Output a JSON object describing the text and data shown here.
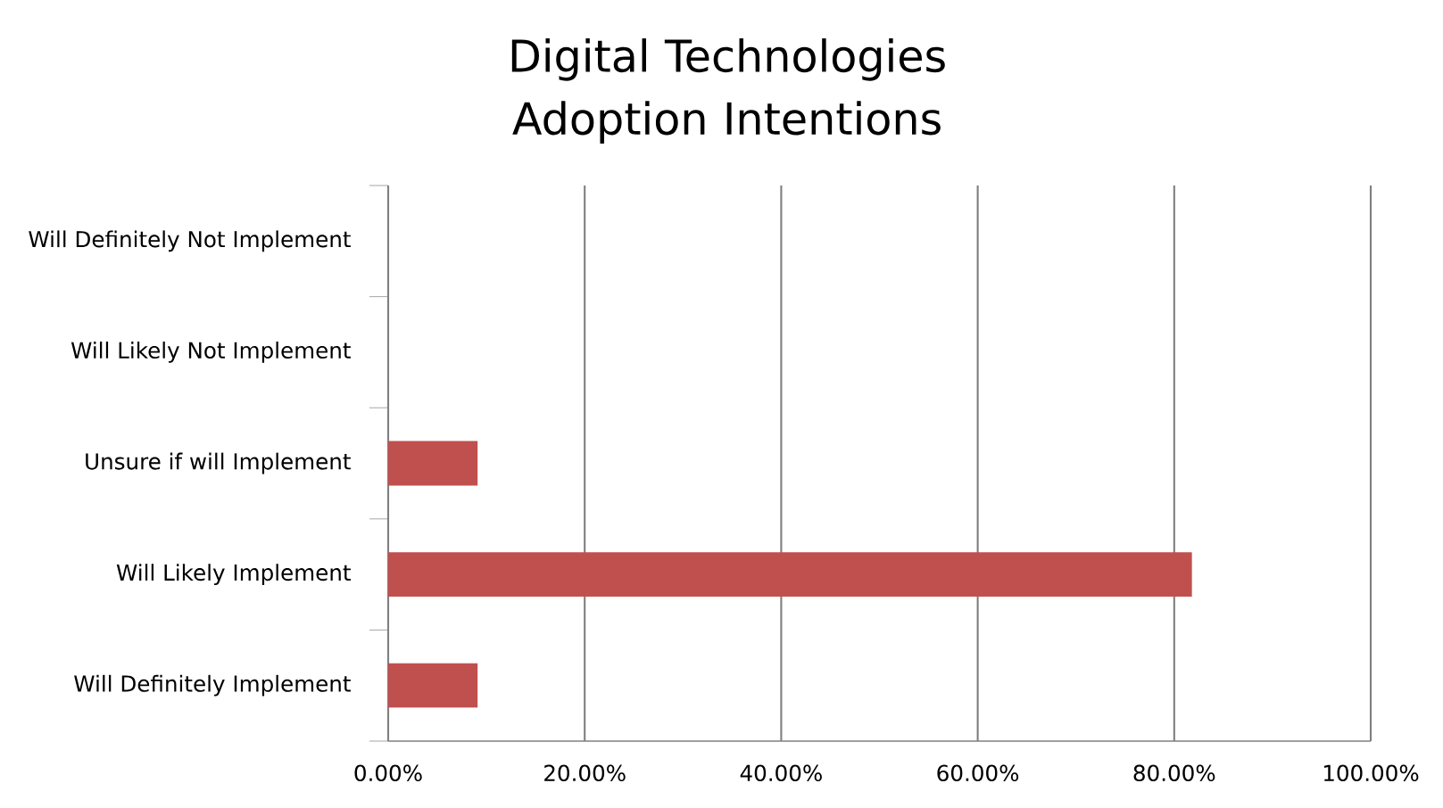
{
  "chart_data": {
    "type": "bar",
    "orientation": "horizontal",
    "title": "Digital Technologies Adoption Intentions",
    "categories": [
      "Will Definitely Not Implement",
      "Will Likely Not Implement",
      "Unsure if will Implement",
      "Will Likely Implement",
      "Will Definitely Implement"
    ],
    "values": [
      0,
      0,
      9.1,
      81.8,
      9.1
    ],
    "color": "#c0504d",
    "xlim": [
      0,
      100
    ],
    "xticks": [
      {
        "value": 0,
        "label": "0.00%"
      },
      {
        "value": 20,
        "label": "20.00%"
      },
      {
        "value": 40,
        "label": "40.00%"
      },
      {
        "value": 60,
        "label": "60.00%"
      },
      {
        "value": 80,
        "label": "80.00%"
      },
      {
        "value": 100,
        "label": "100.00%"
      }
    ],
    "grid": "x"
  }
}
